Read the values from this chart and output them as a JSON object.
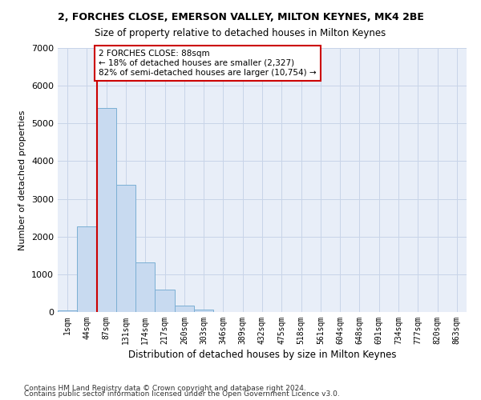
{
  "title1": "2, FORCHES CLOSE, EMERSON VALLEY, MILTON KEYNES, MK4 2BE",
  "title2": "Size of property relative to detached houses in Milton Keynes",
  "xlabel": "Distribution of detached houses by size in Milton Keynes",
  "ylabel": "Number of detached properties",
  "footnote1": "Contains HM Land Registry data © Crown copyright and database right 2024.",
  "footnote2": "Contains public sector information licensed under the Open Government Licence v3.0.",
  "bar_labels": [
    "1sqm",
    "44sqm",
    "87sqm",
    "131sqm",
    "174sqm",
    "217sqm",
    "260sqm",
    "303sqm",
    "346sqm",
    "389sqm",
    "432sqm",
    "475sqm",
    "518sqm",
    "561sqm",
    "604sqm",
    "648sqm",
    "691sqm",
    "734sqm",
    "777sqm",
    "820sqm",
    "863sqm"
  ],
  "bar_values": [
    50,
    2280,
    5400,
    3380,
    1310,
    600,
    160,
    70,
    0,
    0,
    0,
    0,
    0,
    0,
    0,
    0,
    0,
    0,
    0,
    0,
    0
  ],
  "bar_color": "#c8daf0",
  "bar_edge_color": "#7bafd4",
  "grid_color": "#c8d4e8",
  "background_color": "#e8eef8",
  "red_line_x": 1.5,
  "annotation_text": "2 FORCHES CLOSE: 88sqm\n← 18% of detached houses are smaller (2,327)\n82% of semi-detached houses are larger (10,754) →",
  "annotation_box_color": "#ffffff",
  "annotation_box_edge_color": "#cc0000",
  "ylim": [
    0,
    7000
  ],
  "yticks": [
    0,
    1000,
    2000,
    3000,
    4000,
    5000,
    6000,
    7000
  ]
}
